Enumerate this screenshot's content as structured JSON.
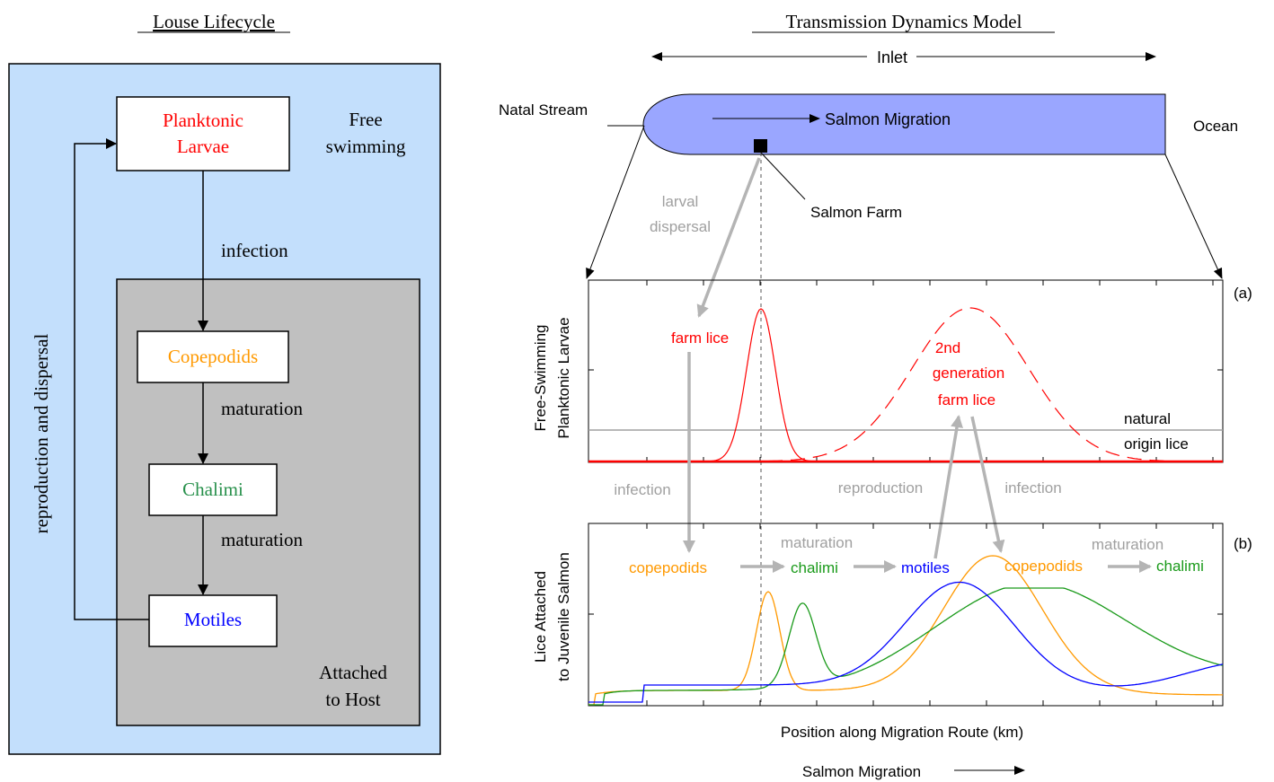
{
  "left_panel": {
    "title": "Louse Lifecycle",
    "stages": {
      "planktonic": [
        "Planktonic",
        "Larvae"
      ],
      "copepodids": "Copepodids",
      "chalimi": "Chalimi",
      "motiles": "Motiles"
    },
    "free_swimming": [
      "Free",
      "swimming"
    ],
    "attached_to_host": [
      "Attached",
      "to Host"
    ],
    "arrows": {
      "infection": "infection",
      "maturation_1": "maturation",
      "maturation_2": "maturation",
      "reproduction": "reproduction and dispersal"
    },
    "colors": {
      "outer_bg": "#c3dffc",
      "host_bg": "#c0c0c0",
      "planktonic": "#ff0000",
      "copepodids": "#ff9900",
      "chalimi": "#27904b",
      "motiles": "#0000ff"
    }
  },
  "right_panel": {
    "title": "Transmission Dynamics Model",
    "inlet": "Inlet",
    "natal_stream": "Natal Stream",
    "salmon_migration_top": "Salmon Migration",
    "ocean": "Ocean",
    "salmon_farm": "Salmon Farm",
    "larval_dispersal": [
      "larval",
      "dispersal"
    ],
    "panel_a_tag": "(a)",
    "panel_b_tag": "(b)",
    "a_ylabel": [
      "Free-Swimming",
      "Planktonic Larvae"
    ],
    "b_ylabel": [
      "Lice Attached",
      "to Juvenile Salmon"
    ],
    "farm_lice": "farm lice",
    "second_gen": [
      "2nd",
      "generation",
      "farm lice"
    ],
    "natural_origin": [
      "natural",
      "origin lice"
    ],
    "flow_infection_left": "infection",
    "flow_reproduction": "reproduction",
    "flow_infection_right": "infection",
    "stage_copepodids_1": "copepodids",
    "stage_chalimi_1": "chalimi",
    "stage_motiles": "motiles",
    "stage_copepodids_2": "copepodids",
    "stage_chalimi_2": "chalimi",
    "maturation_1": "maturation",
    "maturation_2": "maturation",
    "xlabel": "Position along Migration Route (km)",
    "salmon_migration_bottom": "Salmon Migration",
    "colors": {
      "inlet_fill": "#9aa6ff",
      "farm_lice": "#ff0000",
      "natural": "#a0a0a0",
      "copepodids": "#ff9900",
      "chalimi": "#1a9a1a",
      "motiles": "#0000ff",
      "flow_arrow": "#b4b4b4"
    }
  }
}
